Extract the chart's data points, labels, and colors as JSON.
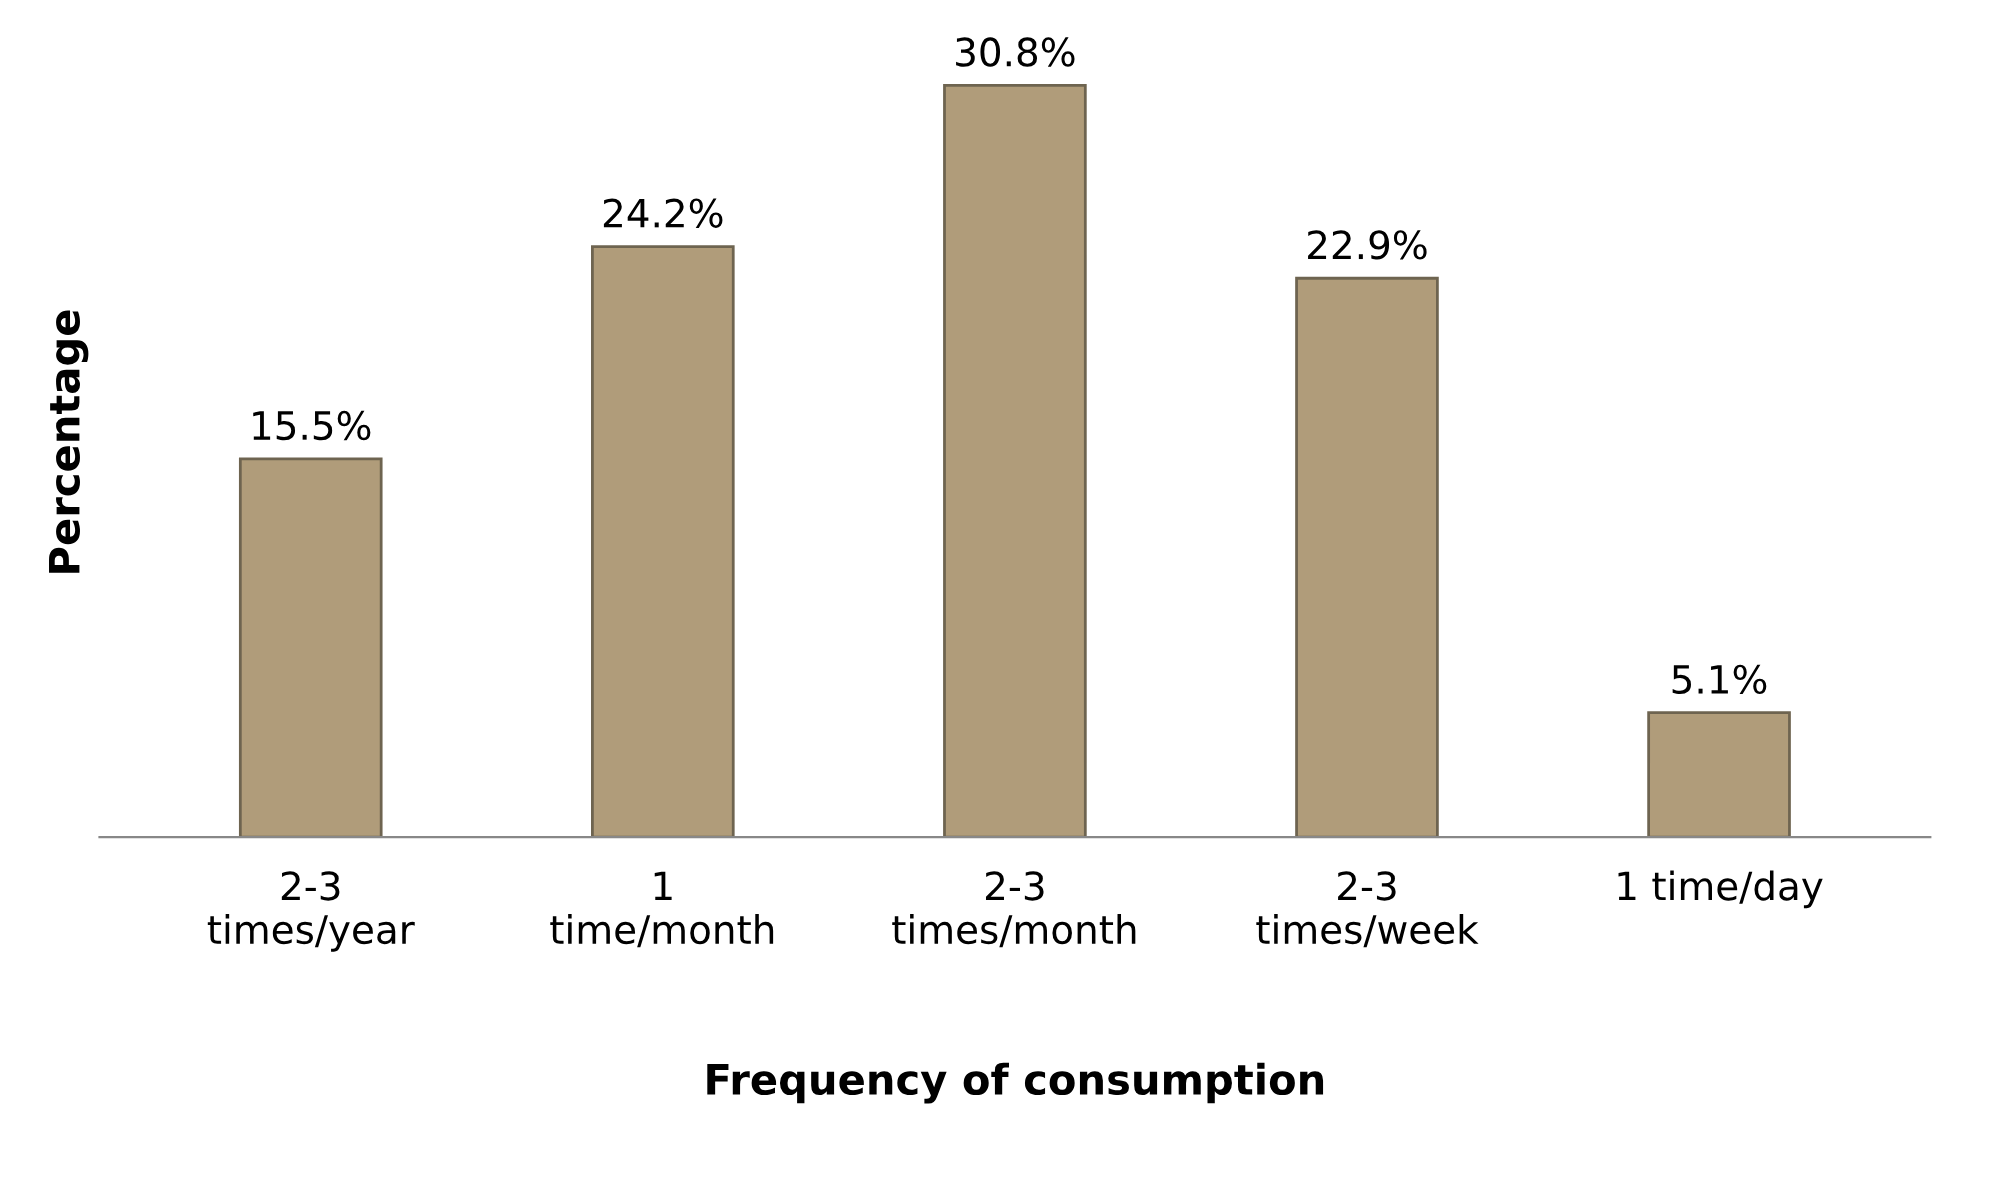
{
  "chart_data": {
    "type": "bar",
    "xlabel": "Frequency of consumption",
    "ylabel": "Percentage",
    "categories": [
      "2-3\ntimes/year",
      "1\ntime/month",
      "2-3\ntimes/month",
      "2-3\ntimes/week",
      "1 time/day"
    ],
    "values": [
      15.5,
      24.2,
      30.8,
      22.9,
      5.1
    ],
    "value_labels": [
      "15.5%",
      "24.2%",
      "30.8%",
      "22.9%",
      "5.1%"
    ],
    "color": "#b09c7a",
    "grid": false,
    "legend": false
  }
}
